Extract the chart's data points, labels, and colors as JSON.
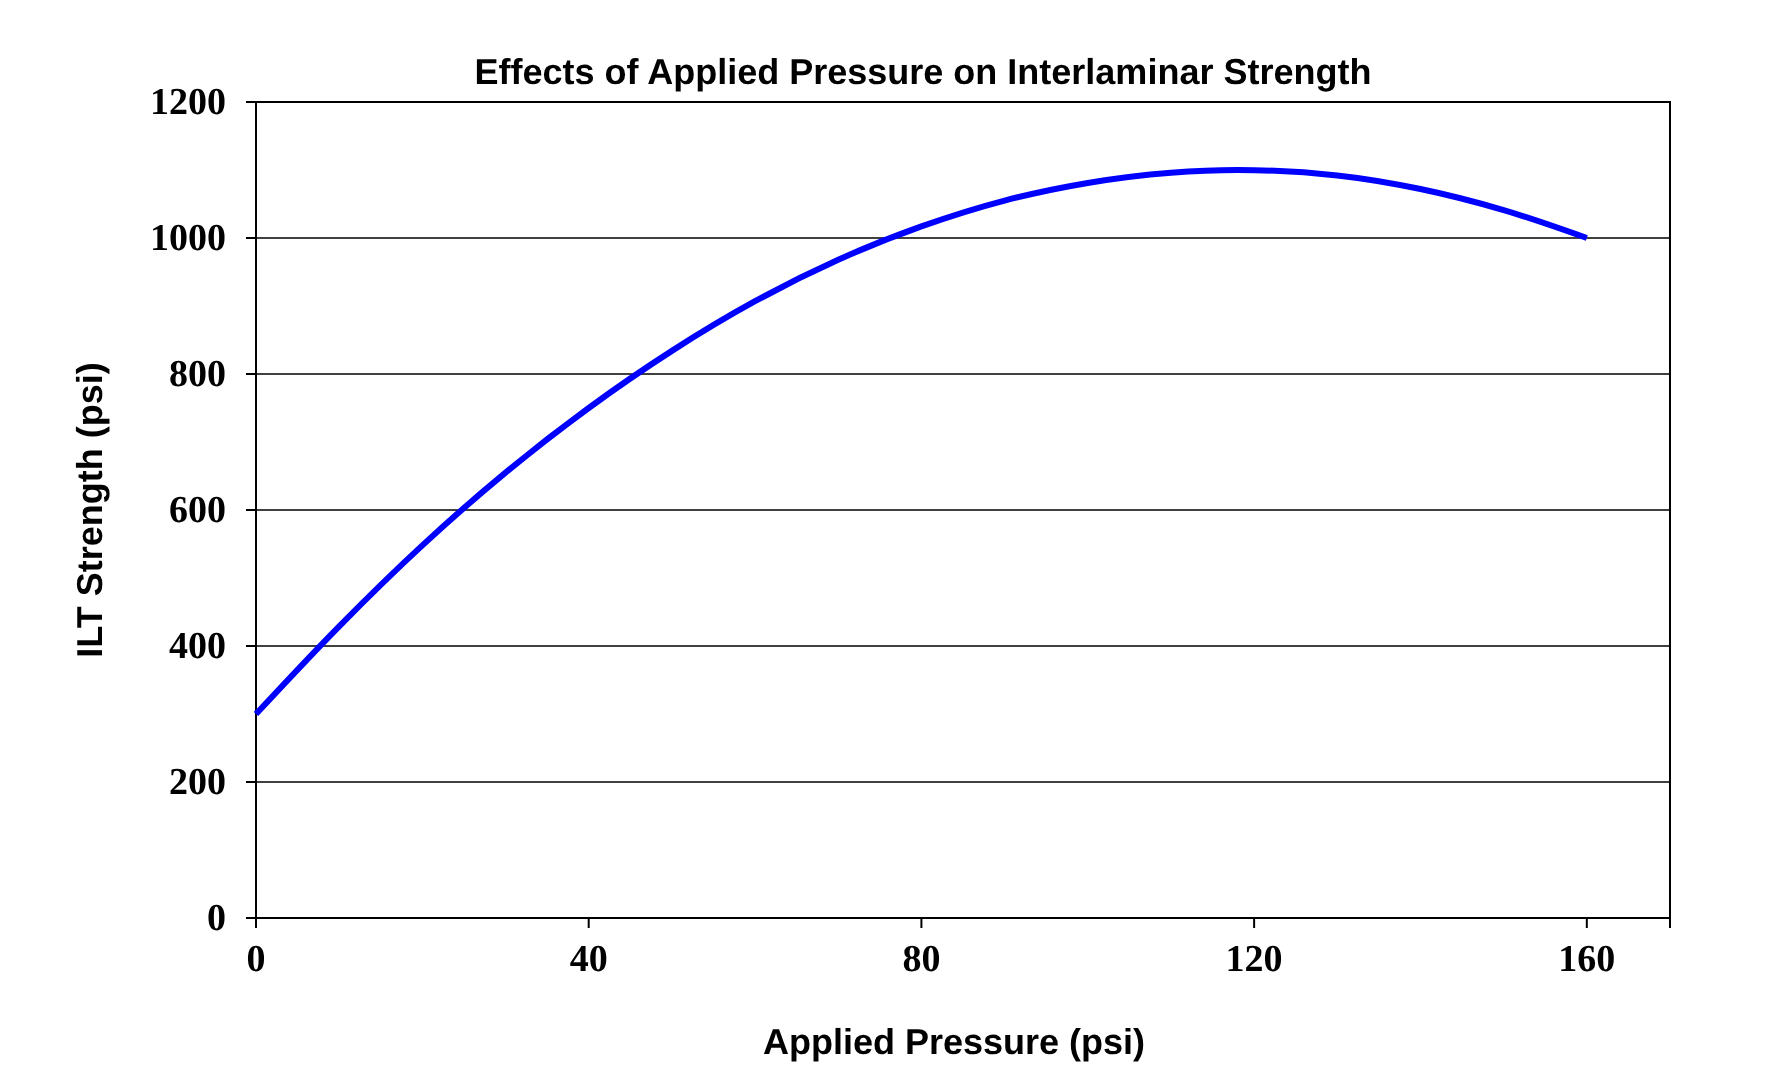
{
  "chart_data": {
    "type": "line",
    "title": "Effects of Applied Pressure on Interlaminar Strength",
    "xlabel": "Applied Pressure (psi)",
    "ylabel": "ILT Strength (psi)",
    "x": [
      0,
      10,
      20,
      30,
      40,
      50,
      60,
      70,
      80,
      90,
      100,
      110,
      118,
      130,
      140,
      150,
      160
    ],
    "series": [
      {
        "color": "#0000ff",
        "values": [
          300,
          429,
          548,
          655,
          750,
          834,
          907,
          968,
          1017,
          1055,
          1081,
          1096,
          1100,
          1092,
          1072,
          1041,
          1000
        ]
      }
    ],
    "xlim": [
      0,
      170
    ],
    "xticks": [
      0,
      40,
      80,
      120,
      160
    ],
    "ylim": [
      0,
      1200
    ],
    "yticks": [
      0,
      200,
      400,
      600,
      800,
      1000,
      1200
    ],
    "grid": "y",
    "marker": "none",
    "line_style": "solid"
  }
}
